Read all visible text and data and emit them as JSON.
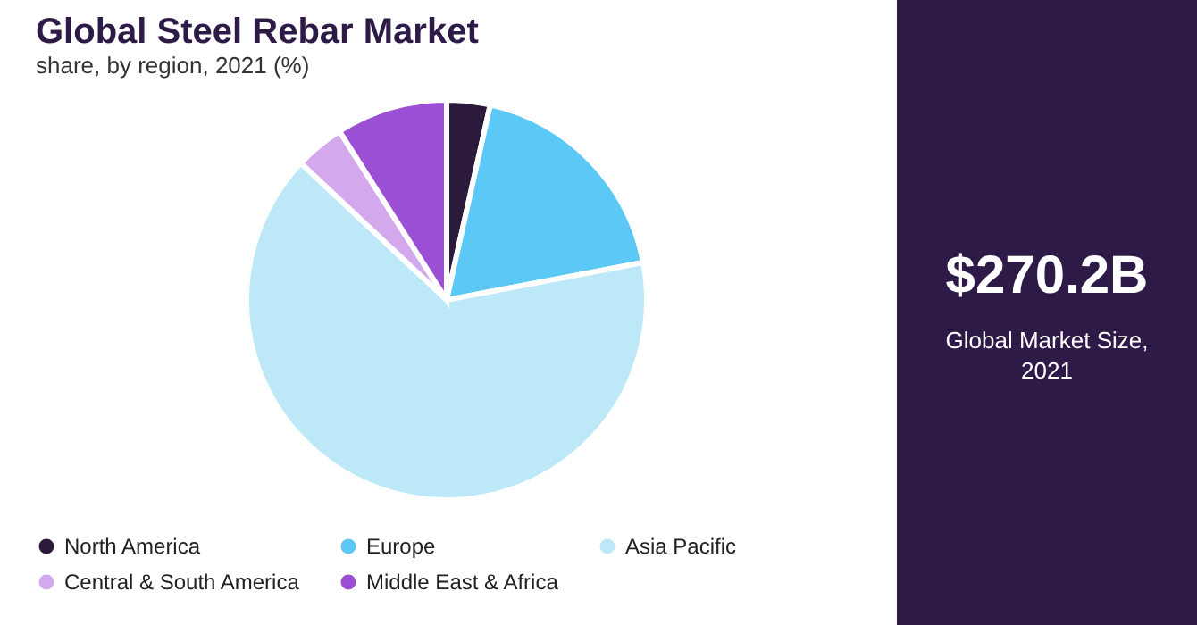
{
  "chart_data": {
    "type": "pie",
    "title": "Global Steel Rebar Market",
    "subtitle": "share, by region, 2021 (%)",
    "categories": [
      "North America",
      "Europe",
      "Asia Pacific",
      "Central & South America",
      "Middle East & Africa"
    ],
    "values": [
      3.5,
      18.5,
      65,
      4,
      9
    ],
    "colors": [
      "#2b1a3a",
      "#5bc8f5",
      "#bde8f8",
      "#d4a8ec",
      "#9b4fd4"
    ],
    "legend": "bottom",
    "annotations": [
      "$270.2B",
      "Global Market Size, 2021"
    ]
  }
}
